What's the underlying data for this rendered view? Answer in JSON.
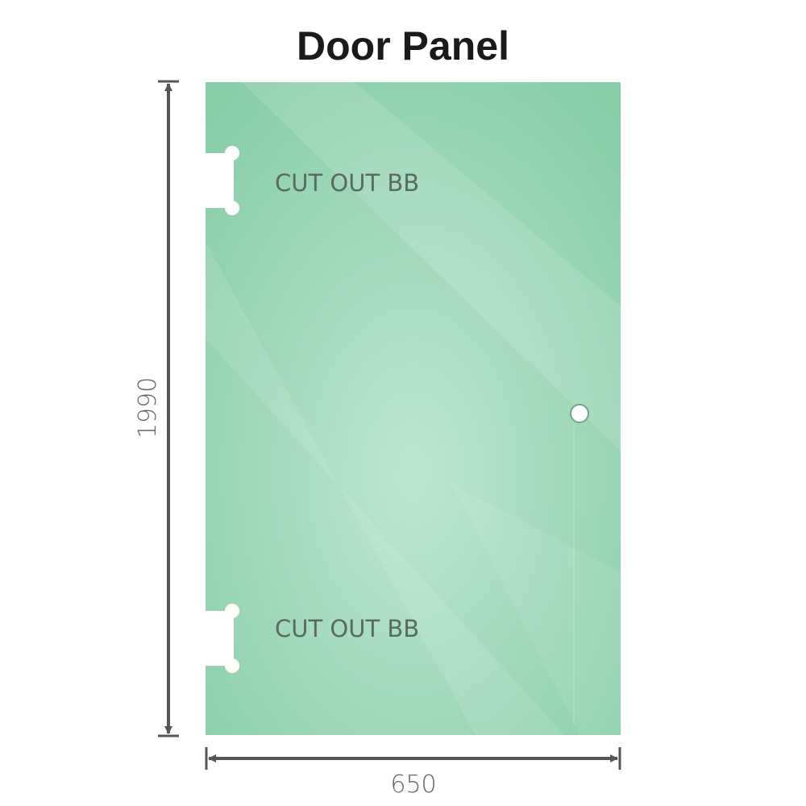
{
  "title": "Door Panel",
  "dimensions": {
    "height": "1990",
    "width": "650"
  },
  "cutouts": [
    {
      "label": "CUT OUT BB"
    },
    {
      "label": "CUT OUT BB"
    }
  ],
  "colors": {
    "glass_edge": "#86cda6",
    "glass_center": "#bde5d0",
    "dimension_line": "#555555"
  }
}
